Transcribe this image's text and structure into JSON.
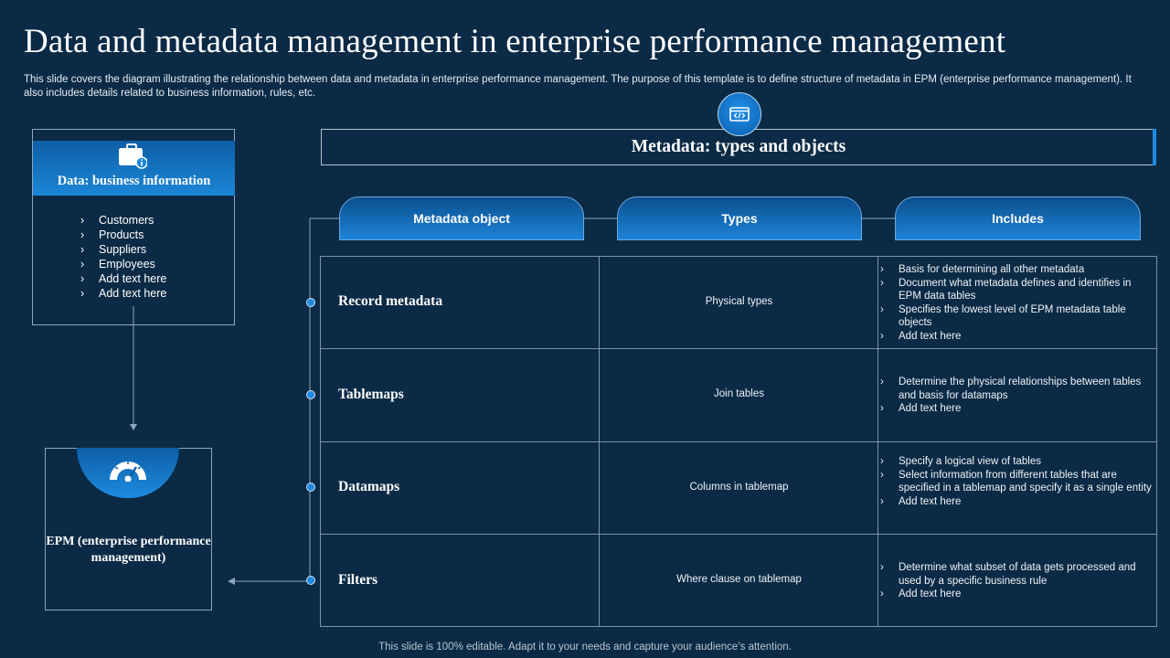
{
  "title": "Data and metadata management in enterprise performance management",
  "subtitle": "This slide covers the diagram illustrating the relationship between data and metadata in enterprise performance management. The purpose of this template is to define structure of metadata in EPM (enterprise performance management). It also includes details related to business information, rules, etc.",
  "data_box": {
    "icon": "briefcase-info-icon",
    "heading": "Data: business information",
    "items": [
      "Customers",
      "Products",
      "Suppliers",
      "Employees",
      "Add text here",
      "Add text here"
    ]
  },
  "epm_box": {
    "icon": "gauge-icon",
    "label": "EPM (enterprise performance management)"
  },
  "metadata": {
    "icon": "code-window-icon",
    "title": "Metadata: types and objects",
    "columns": [
      "Metadata object",
      "Types",
      "Includes"
    ],
    "rows": [
      {
        "object": "Record metadata",
        "type": "Physical types",
        "includes": [
          "Basis for determining all other metadata",
          "Document what metadata defines and identifies in EPM data tables",
          "Specifies the lowest level of EPM metadata  table objects",
          "Add text here"
        ]
      },
      {
        "object": "Tablemaps",
        "type": "Join tables",
        "includes": [
          "Determine the physical relationships between tables and basis for datamaps",
          "Add text here"
        ]
      },
      {
        "object": "Datamaps",
        "type": "Columns in tablemap",
        "includes": [
          "Specify a logical view of tables",
          "Select information from different tables that are specified in a tablemap and specify it as a single entity",
          "Add text here"
        ]
      },
      {
        "object": "Filters",
        "type": "Where clause on tablemap",
        "includes": [
          "Determine what subset of data gets processed and used by a specific business rule",
          "Add text here"
        ]
      }
    ]
  },
  "colors": {
    "background": "#0b2a45",
    "accent": "#1e8be0",
    "border": "#7c93a8"
  },
  "footer": "This slide is 100% editable. Adapt it to your needs and capture your audience’s attention."
}
